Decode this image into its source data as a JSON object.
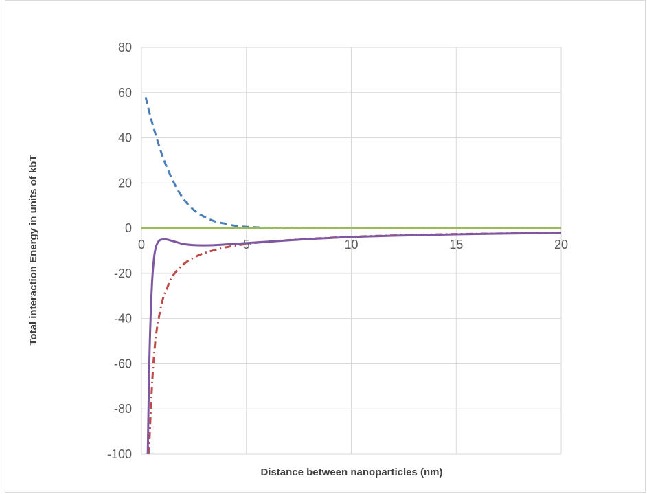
{
  "chart_data": {
    "type": "line",
    "title": "",
    "xlabel": "Distance between nanoparticles (nm)",
    "ylabel": "Total interaction Energy in units of kbT",
    "xlim": [
      0,
      20
    ],
    "ylim": [
      -100,
      80
    ],
    "xticks": [
      0,
      5,
      10,
      15,
      20
    ],
    "yticks": [
      -100,
      -80,
      -60,
      -40,
      -20,
      0,
      20,
      40,
      60,
      80
    ],
    "grid": true,
    "legend": "none",
    "series": [
      {
        "color": "#4a7ebb",
        "dash": "dashed",
        "x": [
          0.2,
          0.5,
          1.0,
          1.5,
          2.0,
          2.5,
          3.0,
          3.5,
          4.0,
          4.5,
          5.0,
          6.0,
          8.0,
          10.0,
          15.0,
          20.0
        ],
        "y": [
          58,
          47,
          32,
          21,
          13,
          8,
          5,
          3,
          2,
          1,
          0.6,
          0.2,
          0,
          0,
          0,
          0
        ]
      },
      {
        "color": "#be4b48",
        "dash": "dash-dot",
        "x": [
          0.35,
          0.4,
          0.5,
          0.6,
          0.7,
          0.8,
          1.0,
          1.2,
          1.5,
          2.0,
          2.5,
          3.0,
          4.0,
          5.0,
          6.0,
          8.0,
          10.0,
          12.0,
          15.0,
          20.0
        ],
        "y": [
          -100,
          -90,
          -70,
          -56,
          -47,
          -41,
          -32,
          -27,
          -21,
          -16,
          -13,
          -11,
          -8.5,
          -7,
          -6,
          -4.7,
          -3.8,
          -3.2,
          -2.6,
          -2.0
        ],
        "dash_pattern": "8 5 2 5"
      },
      {
        "color": "#7e58a3",
        "dash": "solid",
        "x": [
          0.3,
          0.35,
          0.4,
          0.5,
          0.6,
          0.7,
          0.8,
          0.9,
          1.0,
          1.2,
          1.4,
          1.6,
          2.0,
          2.5,
          3.0,
          3.5,
          4.0,
          5.0,
          6.0,
          8.0,
          10.0,
          12.0,
          15.0,
          20.0
        ],
        "y": [
          -100,
          -72,
          -50,
          -25,
          -13,
          -8,
          -6,
          -5.2,
          -5,
          -5,
          -5.5,
          -6,
          -7,
          -7.5,
          -7.6,
          -7.5,
          -7.2,
          -6.6,
          -6,
          -4.8,
          -3.9,
          -3.3,
          -2.7,
          -2.0
        ]
      },
      {
        "color": "#9bbb59",
        "dash": "solid",
        "x": [
          0,
          5,
          10,
          15,
          20
        ],
        "y": [
          0,
          0,
          0,
          0,
          0
        ]
      }
    ]
  }
}
